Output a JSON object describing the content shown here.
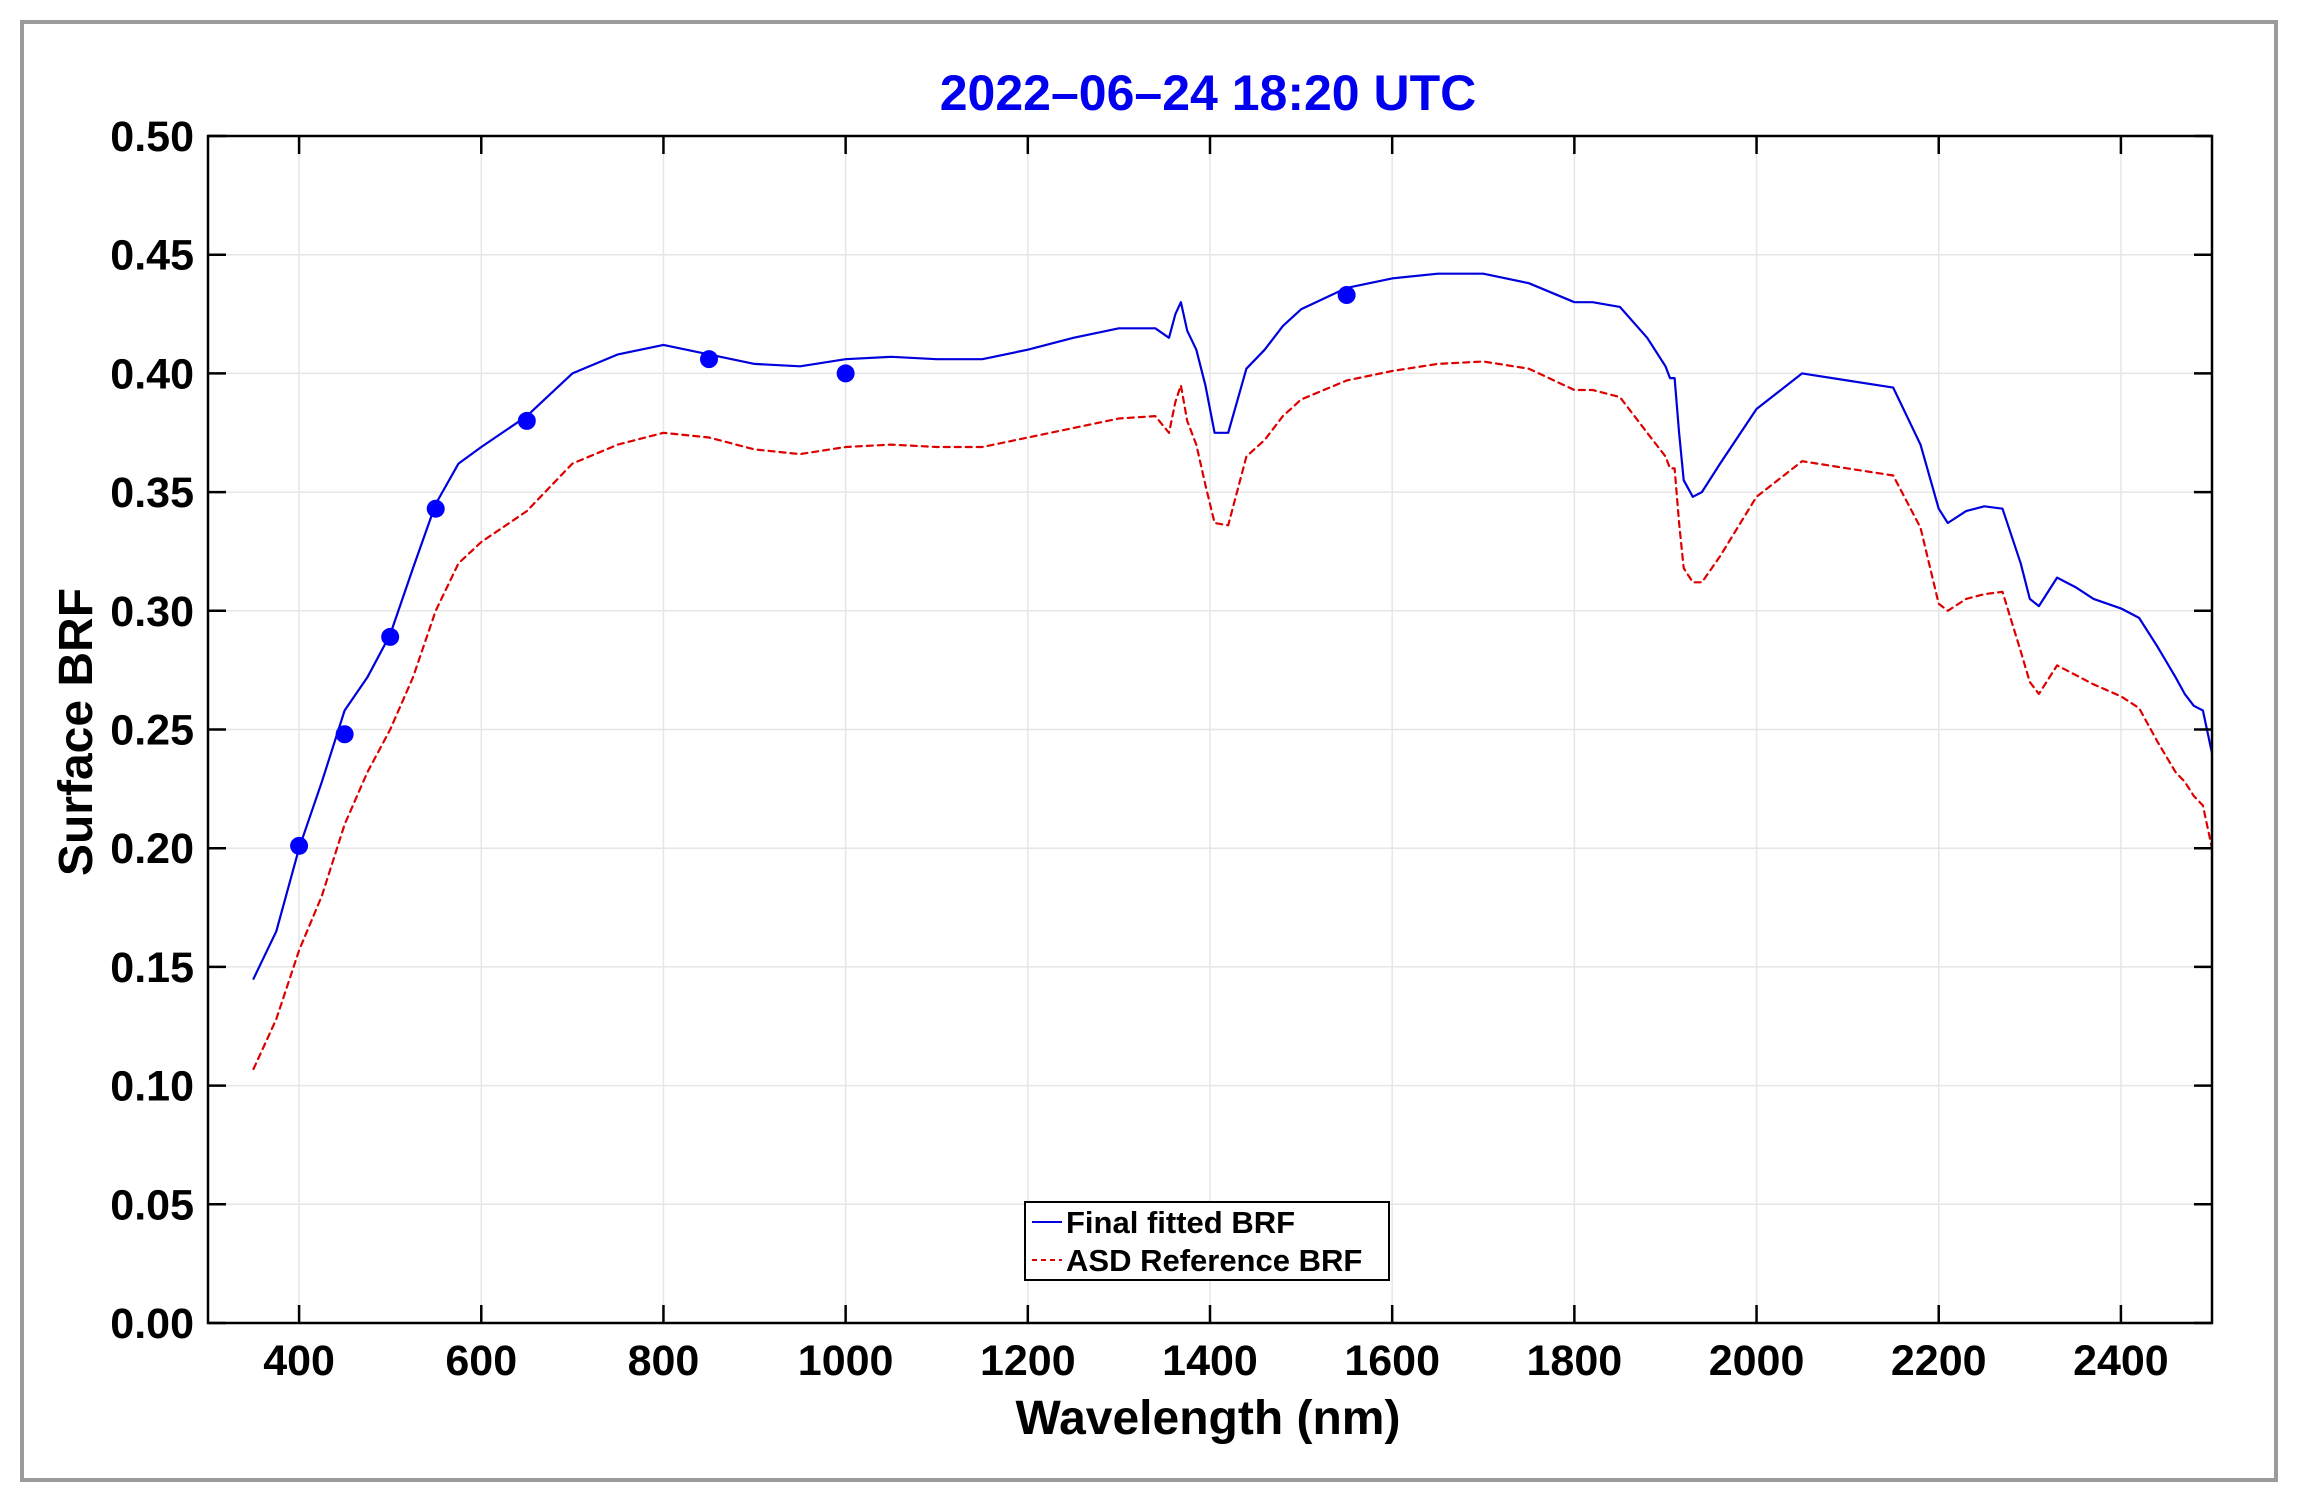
{
  "chart_data": {
    "type": "line",
    "title": "2022–06–24  18:20 UTC",
    "xlabel": "Wavelength (nm)",
    "ylabel": "Surface BRF",
    "xlim": [
      300,
      2500
    ],
    "ylim": [
      0,
      0.5
    ],
    "grid": true,
    "legend_position": "bottom-center",
    "xticks": [
      400,
      600,
      800,
      1000,
      1200,
      1400,
      1600,
      1800,
      2000,
      2200,
      2400
    ],
    "yticks": [
      "0.00",
      "0.05",
      "0.10",
      "0.15",
      "0.20",
      "0.25",
      "0.30",
      "0.35",
      "0.40",
      "0.45",
      "0.50"
    ],
    "colors": {
      "title": "#0000ee",
      "fitted": "#0000dd",
      "reference": "#dd0000",
      "markers": "#0000ff"
    },
    "series": [
      {
        "name": "Final fitted BRF",
        "style": "solid",
        "x": [
          350,
          375,
          400,
          425,
          450,
          475,
          500,
          525,
          550,
          575,
          600,
          650,
          700,
          750,
          800,
          850,
          900,
          950,
          1000,
          1050,
          1100,
          1150,
          1200,
          1250,
          1300,
          1340,
          1355,
          1362,
          1368,
          1375,
          1385,
          1395,
          1405,
          1420,
          1440,
          1460,
          1480,
          1500,
          1550,
          1600,
          1650,
          1700,
          1750,
          1800,
          1820,
          1850,
          1880,
          1900,
          1905,
          1910,
          1915,
          1920,
          1930,
          1940,
          1960,
          2000,
          2050,
          2100,
          2150,
          2180,
          2200,
          2210,
          2230,
          2250,
          2270,
          2290,
          2300,
          2310,
          2330,
          2350,
          2370,
          2400,
          2420,
          2440,
          2460,
          2470,
          2480,
          2490,
          2500
        ],
        "y": [
          0.145,
          0.165,
          0.2,
          0.228,
          0.258,
          0.272,
          0.29,
          0.318,
          0.345,
          0.362,
          0.369,
          0.382,
          0.4,
          0.408,
          0.412,
          0.408,
          0.404,
          0.403,
          0.406,
          0.407,
          0.406,
          0.406,
          0.41,
          0.415,
          0.419,
          0.419,
          0.415,
          0.425,
          0.43,
          0.418,
          0.41,
          0.395,
          0.375,
          0.375,
          0.402,
          0.41,
          0.42,
          0.427,
          0.436,
          0.44,
          0.442,
          0.442,
          0.438,
          0.43,
          0.43,
          0.428,
          0.415,
          0.403,
          0.398,
          0.398,
          0.375,
          0.355,
          0.348,
          0.35,
          0.362,
          0.385,
          0.4,
          0.397,
          0.394,
          0.37,
          0.343,
          0.337,
          0.342,
          0.344,
          0.343,
          0.32,
          0.305,
          0.302,
          0.314,
          0.31,
          0.305,
          0.301,
          0.297,
          0.285,
          0.272,
          0.265,
          0.26,
          0.258,
          0.24
        ]
      },
      {
        "name": "ASD Reference BRF",
        "style": "dashed",
        "x": [
          350,
          375,
          400,
          425,
          450,
          475,
          500,
          525,
          550,
          575,
          600,
          650,
          700,
          750,
          800,
          850,
          900,
          950,
          1000,
          1050,
          1100,
          1150,
          1200,
          1250,
          1300,
          1340,
          1355,
          1362,
          1368,
          1375,
          1385,
          1395,
          1405,
          1420,
          1440,
          1460,
          1480,
          1500,
          1550,
          1600,
          1650,
          1700,
          1750,
          1800,
          1820,
          1850,
          1880,
          1900,
          1905,
          1910,
          1915,
          1920,
          1930,
          1940,
          1960,
          2000,
          2050,
          2100,
          2150,
          2180,
          2200,
          2210,
          2230,
          2250,
          2270,
          2290,
          2300,
          2310,
          2330,
          2350,
          2370,
          2400,
          2420,
          2440,
          2460,
          2470,
          2480,
          2490,
          2500
        ],
        "y": [
          0.107,
          0.128,
          0.157,
          0.18,
          0.21,
          0.232,
          0.25,
          0.272,
          0.3,
          0.32,
          0.329,
          0.342,
          0.362,
          0.37,
          0.375,
          0.373,
          0.368,
          0.366,
          0.369,
          0.37,
          0.369,
          0.369,
          0.373,
          0.377,
          0.381,
          0.382,
          0.375,
          0.388,
          0.395,
          0.38,
          0.37,
          0.353,
          0.337,
          0.336,
          0.365,
          0.372,
          0.382,
          0.389,
          0.397,
          0.401,
          0.404,
          0.405,
          0.402,
          0.393,
          0.393,
          0.39,
          0.375,
          0.365,
          0.36,
          0.36,
          0.337,
          0.318,
          0.312,
          0.312,
          0.323,
          0.348,
          0.363,
          0.36,
          0.357,
          0.335,
          0.303,
          0.3,
          0.305,
          0.307,
          0.308,
          0.283,
          0.27,
          0.265,
          0.277,
          0.273,
          0.269,
          0.264,
          0.259,
          0.245,
          0.232,
          0.228,
          0.222,
          0.218,
          0.2
        ]
      }
    ],
    "markers": {
      "x": [
        400,
        450,
        500,
        550,
        650,
        850,
        1000,
        1550
      ],
      "y": [
        0.201,
        0.248,
        0.289,
        0.343,
        0.38,
        0.406,
        0.4,
        0.433
      ]
    }
  }
}
